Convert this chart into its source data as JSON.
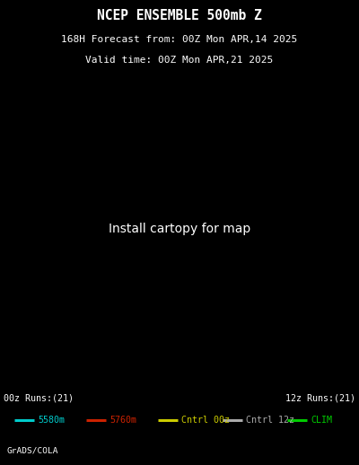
{
  "title_line1": "NCEP ENSEMBLE 500mb Z",
  "title_line2": "168H Forecast from: 00Z Mon APR,14 2025",
  "title_line3": "Valid time: 00Z Mon APR,21 2025",
  "bg_color": "#000000",
  "map_bg": "#000000",
  "title_color": "#ffffff",
  "label_00z": "00z Runs:(21)",
  "label_12z": "12z Runs:(21)",
  "cyan_color": "#00cccc",
  "red_color": "#cc2200",
  "yellow_color": "#cccc00",
  "gray_color": "#aaaaaa",
  "green_color": "#00cc00",
  "legend_labels": [
    "5580m",
    "5760m",
    "Cntrl 00z",
    "Cntrl 12z",
    "CLIM"
  ],
  "grads_label": "GrADS/COLA",
  "fig_width": 4.0,
  "fig_height": 5.18,
  "dpi": 100,
  "n_cyan": 42,
  "n_red": 42,
  "seed_cyan": 42,
  "seed_red": 100,
  "seed_ctrl": 200
}
